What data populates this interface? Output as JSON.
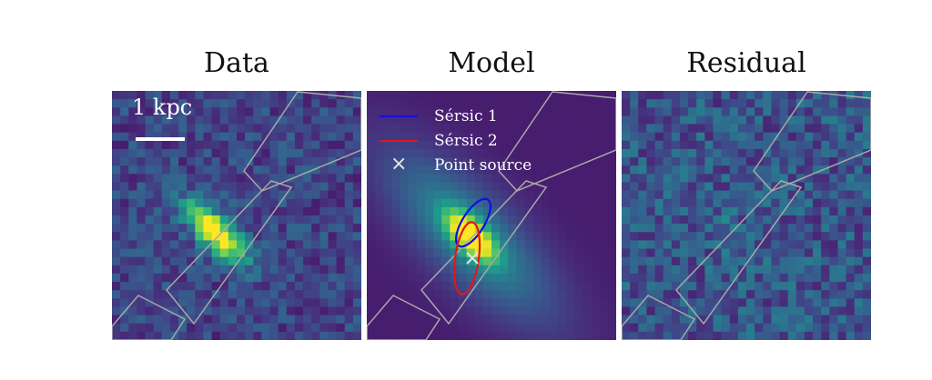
{
  "panels": {
    "data_title": "Data",
    "model_title": "Model",
    "residual_title": "Residual"
  },
  "scale_bar": {
    "label": "1 kpc"
  },
  "legend": {
    "sersic1": "Sérsic 1",
    "sersic2": "Sérsic 2",
    "point_source": "Point source"
  },
  "colors": {
    "sersic1": "#1010e0",
    "sersic2": "#e01818",
    "point_source": "#e0e0e0",
    "aperture": "#a8a8a8",
    "colormap": "viridis"
  },
  "chart_data": {
    "type": "heatmap",
    "panels": [
      "Data",
      "Model",
      "Residual"
    ],
    "colormap": "viridis",
    "overlays": [
      "Sérsic 1",
      "Sérsic 2",
      "Point source"
    ],
    "scale_bar": "1 kpc",
    "grid": false
  }
}
